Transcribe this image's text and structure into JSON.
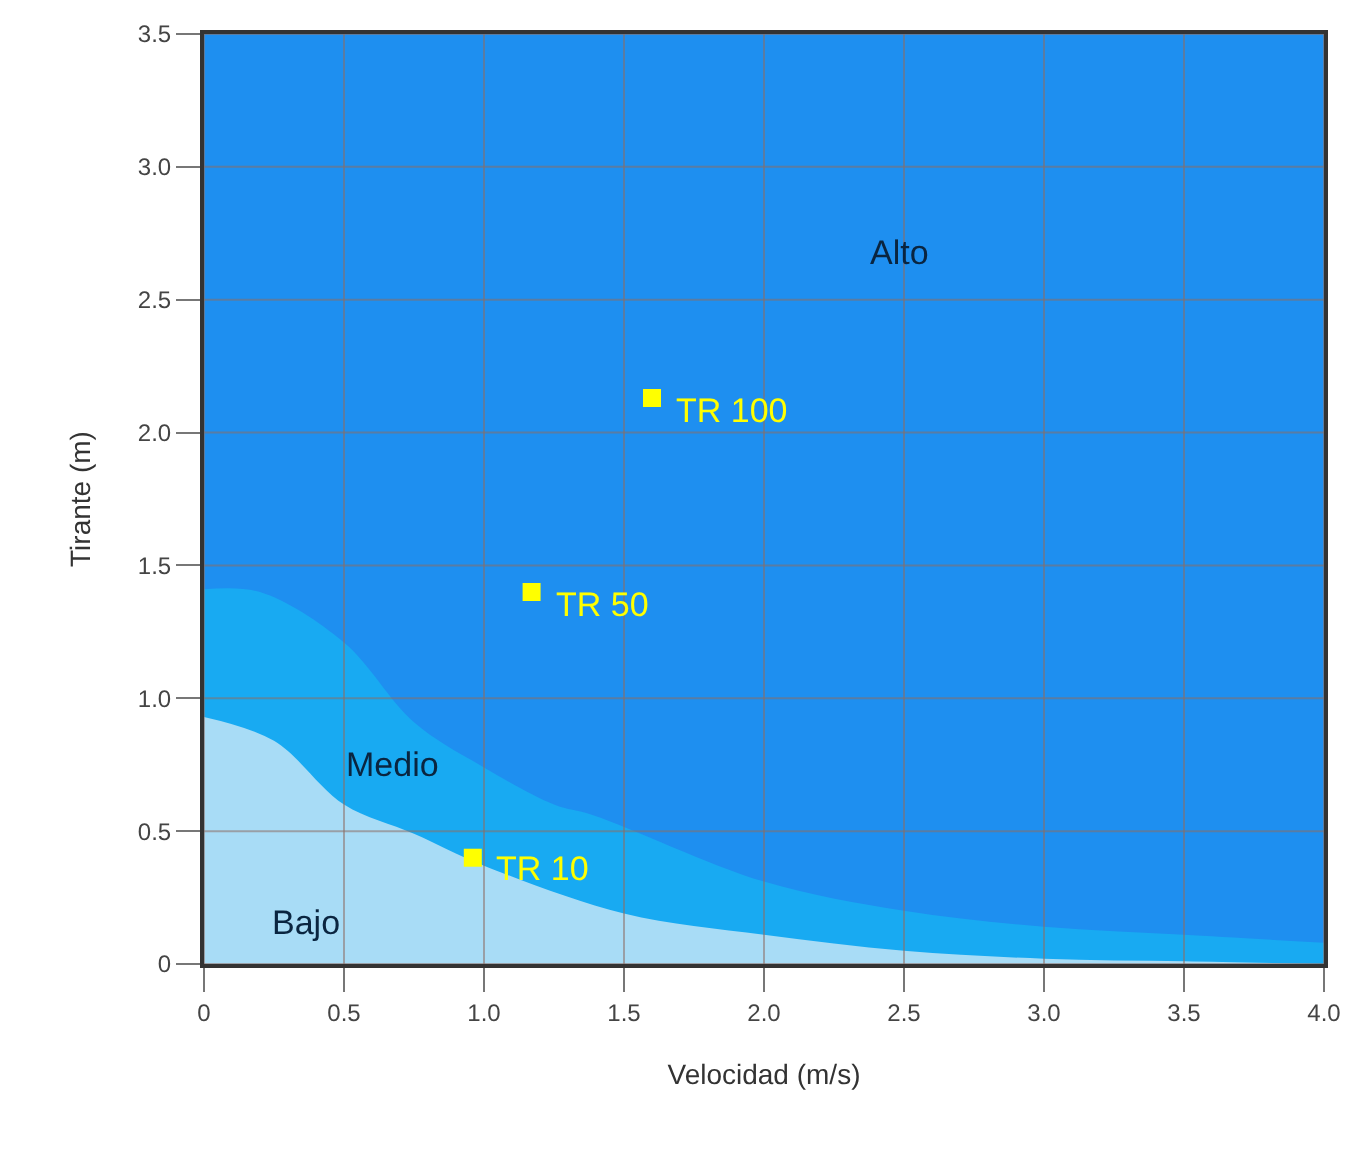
{
  "chart_data": {
    "type": "area",
    "xlabel": "Velocidad (m/s)",
    "ylabel": "Tirante (m)",
    "series": [
      {
        "name": "Alto",
        "color": "#1e8ff0",
        "x": [
          0,
          4
        ],
        "values": [
          3.5,
          3.5
        ]
      },
      {
        "name": "Medio",
        "color": "#18aaf2",
        "x": [
          0,
          0.2,
          0.5,
          0.75,
          1.0,
          1.25,
          1.39,
          2.0,
          2.5,
          3.0,
          3.5,
          4.0
        ],
        "values": [
          1.41,
          1.4,
          1.21,
          0.91,
          0.74,
          0.6,
          0.56,
          0.31,
          0.2,
          0.14,
          0.11,
          0.08
        ]
      },
      {
        "name": "Bajo",
        "color": "#a8dcf6",
        "x": [
          0,
          0.25,
          0.5,
          0.75,
          1.0,
          1.5,
          2.0,
          2.5,
          3.0,
          3.5,
          4.0
        ],
        "values": [
          0.93,
          0.84,
          0.6,
          0.49,
          0.37,
          0.19,
          0.11,
          0.05,
          0.02,
          0.01,
          0.0
        ]
      },
      {
        "type": "scatter",
        "marker": "square",
        "color": "#ffff00",
        "x": [
          0.96,
          1.17,
          1.6
        ],
        "values": [
          0.4,
          1.4,
          2.13
        ]
      }
    ],
    "annotations": [
      {
        "text": "TR 10",
        "x": 0.96,
        "y": 0.4
      },
      {
        "text": "TR 50",
        "x": 1.17,
        "y": 1.4
      },
      {
        "text": "TR 100",
        "x": 1.6,
        "y": 2.13
      }
    ],
    "xlim": [
      0,
      4
    ],
    "ylim": [
      0,
      3.5
    ],
    "xticks": [
      0,
      0.5,
      {
        "value": 1,
        "label": "1.0"
      },
      1.5,
      {
        "value": 2,
        "label": "2.0"
      },
      2.5,
      {
        "value": 3,
        "label": "3.0"
      },
      3.5,
      {
        "value": 4,
        "label": "4.0"
      }
    ],
    "yticks": [
      0,
      0.5,
      {
        "value": 1,
        "label": "1.0"
      },
      1.5,
      {
        "value": 2,
        "label": "2.0"
      },
      2.5,
      {
        "value": 3,
        "label": "3.0"
      },
      3.5
    ],
    "grid": true
  }
}
